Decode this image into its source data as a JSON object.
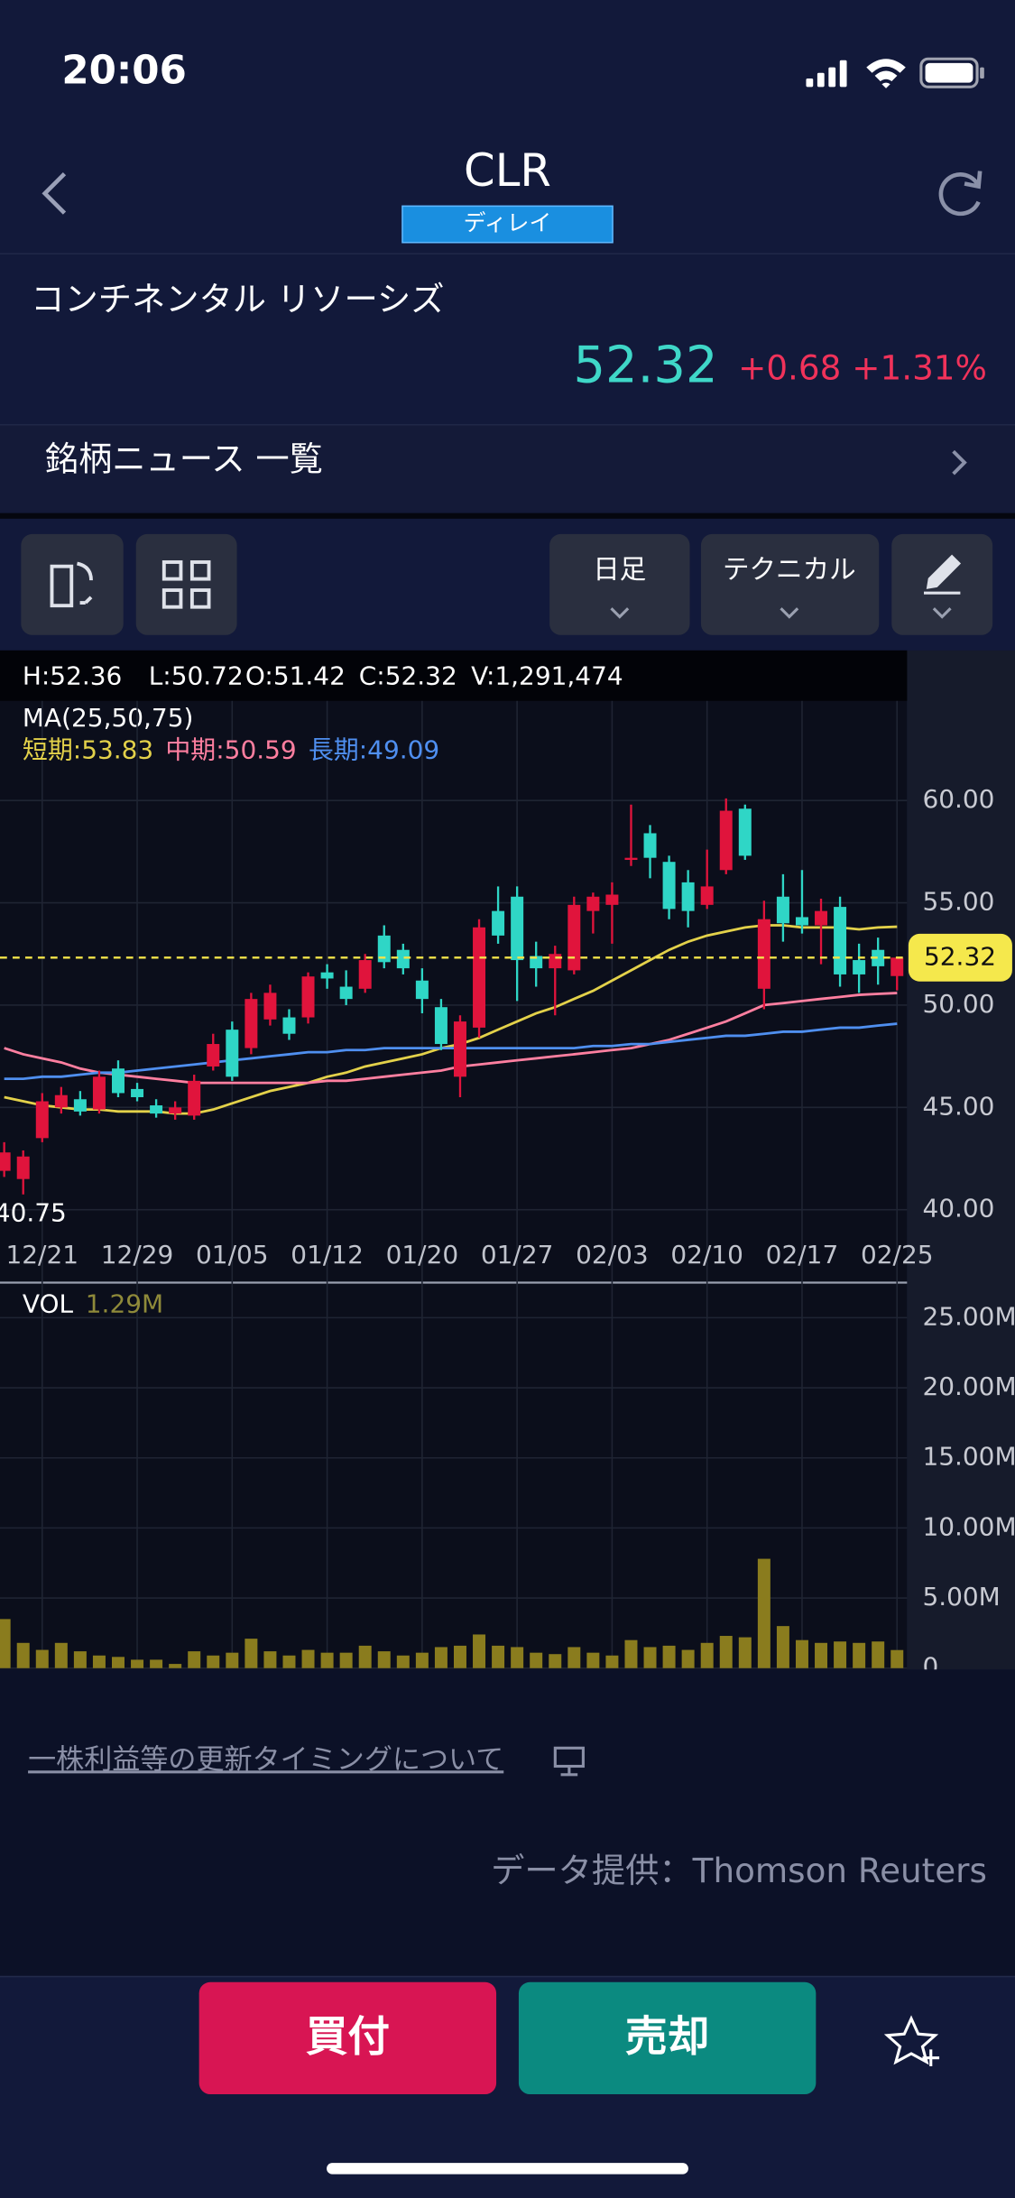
{
  "status_bar": {
    "time": "20:06"
  },
  "header": {
    "symbol": "CLR",
    "badge": "ディレイ"
  },
  "quote": {
    "name": "コンチネンタル リソーシズ",
    "price": "52.32",
    "change": "+0.68",
    "change_pct": "+1.31%"
  },
  "news_link": "銘柄ニュース 一覧",
  "toolbar": {
    "period": "日足",
    "technical": "テクニカル"
  },
  "ohlcv": [
    "H:52.36",
    "L:50.72",
    "O:51.42",
    "C:52.32",
    "V:1,291,474"
  ],
  "ma_title": "MA(25,50,75)",
  "chart_data": [
    {
      "type": "candlestick",
      "categories": [
        null,
        null,
        "12/21",
        null,
        null,
        null,
        null,
        "12/29",
        null,
        null,
        null,
        null,
        "01/05",
        null,
        null,
        null,
        null,
        "01/12",
        null,
        null,
        null,
        null,
        "01/20",
        null,
        null,
        null,
        null,
        "01/27",
        null,
        null,
        null,
        null,
        "02/03",
        null,
        null,
        null,
        null,
        "02/10",
        null,
        null,
        null,
        null,
        "02/17",
        null,
        null,
        null,
        null,
        "02/25"
      ],
      "open": [
        41.9,
        41.5,
        43.5,
        45.0,
        45.4,
        44.9,
        46.9,
        45.9,
        45.1,
        44.7,
        44.6,
        47.0,
        48.8,
        47.9,
        49.3,
        49.4,
        49.4,
        51.6,
        50.9,
        50.8,
        53.4,
        52.7,
        51.2,
        49.9,
        46.5,
        48.9,
        54.6,
        55.3,
        52.4,
        51.8,
        51.7,
        54.6,
        54.9,
        57.1,
        58.4,
        57.0,
        56.0,
        54.9,
        56.6,
        59.6,
        50.8,
        55.3,
        54.3,
        53.9,
        54.8,
        52.2,
        52.7,
        51.42
      ],
      "high": [
        43.3,
        42.9,
        45.7,
        46.0,
        45.8,
        46.8,
        47.3,
        46.2,
        45.4,
        45.3,
        46.6,
        48.6,
        49.2,
        50.6,
        51.0,
        49.8,
        51.6,
        52.0,
        51.7,
        52.5,
        53.9,
        53.0,
        51.8,
        50.3,
        49.5,
        54.2,
        55.8,
        55.8,
        53.1,
        52.9,
        55.3,
        55.5,
        56.0,
        59.8,
        58.8,
        57.3,
        56.6,
        57.6,
        60.1,
        59.8,
        55.1,
        56.4,
        56.6,
        55.2,
        55.3,
        53.0,
        53.3,
        52.36
      ],
      "low": [
        41.6,
        40.75,
        43.3,
        44.7,
        44.6,
        44.7,
        45.5,
        45.3,
        44.5,
        44.4,
        44.4,
        46.8,
        46.3,
        47.6,
        49.0,
        48.3,
        49.1,
        50.8,
        50.0,
        50.6,
        51.8,
        51.5,
        49.6,
        47.8,
        45.5,
        48.4,
        53.0,
        50.2,
        50.9,
        49.5,
        51.5,
        53.5,
        53.0,
        56.8,
        56.2,
        54.2,
        53.8,
        54.7,
        56.4,
        57.1,
        49.8,
        53.1,
        53.5,
        52.0,
        50.9,
        50.6,
        51.0,
        50.72
      ],
      "close": [
        42.8,
        42.6,
        45.3,
        45.6,
        44.8,
        46.5,
        45.7,
        45.5,
        44.7,
        45.0,
        46.3,
        48.1,
        46.5,
        50.3,
        50.6,
        48.6,
        51.4,
        51.3,
        50.3,
        52.2,
        52.1,
        51.8,
        50.3,
        48.1,
        49.2,
        53.8,
        53.4,
        52.2,
        51.8,
        52.5,
        54.9,
        55.3,
        55.4,
        57.2,
        57.2,
        54.7,
        54.6,
        55.8,
        59.5,
        57.3,
        54.2,
        54.0,
        53.9,
        54.6,
        51.5,
        51.5,
        51.9,
        52.32
      ],
      "up_color": "#e0143c",
      "down_color": "#2fd6c6",
      "series": [
        {
          "name": "短期:53.83",
          "color": "#e3d14a",
          "values": [
            45.5,
            45.3,
            45.1,
            45.0,
            44.9,
            44.9,
            44.8,
            44.8,
            44.8,
            44.7,
            44.7,
            44.9,
            45.2,
            45.5,
            45.8,
            46.0,
            46.2,
            46.5,
            46.7,
            47.0,
            47.2,
            47.4,
            47.6,
            47.9,
            48.1,
            48.4,
            48.8,
            49.2,
            49.6,
            49.9,
            50.3,
            50.7,
            51.2,
            51.7,
            52.2,
            52.7,
            53.1,
            53.4,
            53.6,
            53.8,
            53.9,
            53.9,
            53.8,
            53.8,
            53.8,
            53.7,
            53.8,
            53.83
          ]
        },
        {
          "name": "中期:50.59",
          "color": "#ff7fa0",
          "values": [
            47.9,
            47.6,
            47.4,
            47.2,
            46.9,
            46.7,
            46.6,
            46.5,
            46.4,
            46.3,
            46.2,
            46.2,
            46.2,
            46.2,
            46.2,
            46.2,
            46.2,
            46.3,
            46.3,
            46.4,
            46.5,
            46.6,
            46.7,
            46.8,
            47.0,
            47.1,
            47.2,
            47.3,
            47.4,
            47.5,
            47.6,
            47.7,
            47.8,
            47.9,
            48.1,
            48.3,
            48.6,
            48.9,
            49.2,
            49.6,
            50.0,
            50.1,
            50.2,
            50.3,
            50.4,
            50.5,
            50.55,
            50.59
          ]
        },
        {
          "name": "長期:49.09",
          "color": "#4f8ff0",
          "values": [
            46.4,
            46.4,
            46.5,
            46.5,
            46.6,
            46.7,
            46.7,
            46.8,
            46.9,
            47.0,
            47.1,
            47.2,
            47.3,
            47.4,
            47.5,
            47.6,
            47.7,
            47.7,
            47.8,
            47.8,
            47.9,
            47.9,
            47.9,
            47.9,
            47.9,
            47.9,
            47.9,
            47.9,
            47.9,
            47.9,
            47.9,
            48.0,
            48.0,
            48.1,
            48.1,
            48.2,
            48.3,
            48.4,
            48.5,
            48.5,
            48.6,
            48.7,
            48.7,
            48.8,
            48.9,
            48.9,
            49.0,
            49.09
          ]
        }
      ],
      "ylim": [
        38.8,
        64.8
      ],
      "yticks": [
        {
          "value": 40,
          "label": "40.00"
        },
        {
          "value": 45,
          "label": "45.00"
        },
        {
          "value": 50,
          "label": "50.00"
        },
        {
          "value": 55,
          "label": "55.00"
        },
        {
          "value": 60,
          "label": "60.00"
        }
      ],
      "grid": true,
      "current_price": 52.32,
      "min_label": 40.75
    },
    {
      "type": "bar",
      "title": "VOL",
      "subtitle": "1.29M",
      "color": "#8a7c1e",
      "values": [
        3.5,
        1.8,
        1.3,
        1.8,
        1.2,
        0.9,
        0.8,
        0.6,
        0.6,
        0.3,
        1.2,
        0.9,
        1.1,
        2.1,
        1.2,
        0.9,
        1.3,
        1.1,
        1.1,
        1.6,
        1.2,
        0.9,
        1.1,
        1.5,
        1.6,
        2.4,
        1.6,
        1.5,
        1.1,
        1.0,
        1.5,
        1.1,
        0.9,
        2.0,
        1.5,
        1.6,
        1.3,
        1.8,
        2.3,
        2.2,
        7.8,
        3.0,
        2.0,
        1.8,
        1.9,
        1.8,
        1.9,
        1.29
      ],
      "ylim": [
        0,
        27.2
      ],
      "yticks": [
        0,
        {
          "value": 5,
          "label": "5.00M"
        },
        {
          "value": 10,
          "label": "10.00M"
        },
        {
          "value": 15,
          "label": "15.00M"
        },
        {
          "value": 20,
          "label": "20.00M"
        },
        {
          "value": 25,
          "label": "25.00M"
        }
      ],
      "grid": true
    }
  ],
  "footer": {
    "eps_link": "一株利益等の更新タイミングについて",
    "source": "データ提供：Thomson Reuters"
  },
  "actions": {
    "buy": "買付",
    "sell": "売却"
  }
}
